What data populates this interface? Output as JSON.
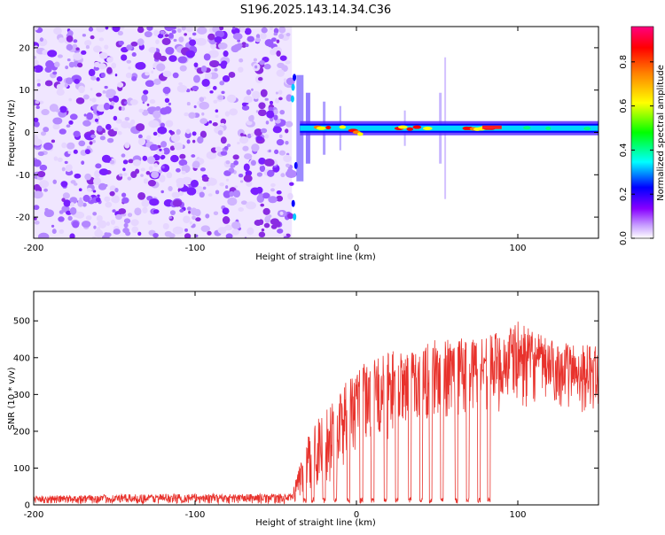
{
  "title": "S196.2025.143.14.34.C36",
  "chart_data": [
    {
      "type": "heatmap",
      "xlabel": "Height of straight line (km)",
      "ylabel": "Frequency (Hz)",
      "xlim": [
        -200,
        150
      ],
      "ylim": [
        -25,
        25
      ],
      "xticks": [
        -200,
        -100,
        0,
        100
      ],
      "yticks": [
        -20,
        -10,
        0,
        10,
        20
      ],
      "colorbar": {
        "label": "Normalized spectral amplitude",
        "range": [
          0.0,
          0.96
        ],
        "ticks": [
          0.0,
          0.2,
          0.4,
          0.6,
          0.8
        ],
        "tick_labels": [
          "0.0",
          "0.2",
          "0.4",
          "0.6",
          "0.8"
        ],
        "colormap": [
          "#ffffff",
          "#8800ff",
          "#0000ff",
          "#00ffff",
          "#00ff00",
          "#ffff00",
          "#ff8000",
          "#ff0000",
          "#ff0080"
        ]
      },
      "features": {
        "noise_region_x": [
          -200,
          -40
        ],
        "tone_start_x": -35,
        "tone_frequency_hz": 1,
        "strong_segments_x": [
          [
            -25,
            5
          ],
          [
            20,
            50
          ],
          [
            60,
            85
          ]
        ]
      }
    },
    {
      "type": "line",
      "xlabel": "Height of straight line (km)",
      "ylabel": "SNR (10 * v/v)",
      "xlim": [
        -200,
        150
      ],
      "ylim": [
        0,
        580
      ],
      "xticks": [
        -200,
        -100,
        0,
        100
      ],
      "yticks": [
        0,
        100,
        200,
        300,
        400,
        500
      ],
      "series": [
        {
          "color": "#e8322c",
          "envelope": {
            "x": [
              -200,
              -120,
              -80,
              -40,
              -35,
              -30,
              -20,
              -10,
              0,
              10,
              20,
              30,
              40,
              50,
              60,
              70,
              80,
              90,
              100,
              110,
              120,
              130,
              140,
              150
            ],
            "low": [
              2,
              2,
              2,
              2,
              10,
              30,
              50,
              80,
              120,
              150,
              180,
              200,
              210,
              220,
              230,
              240,
              250,
              250,
              260,
              270,
              270,
              260,
              250,
              250
            ],
            "high": [
              25,
              30,
              30,
              30,
              120,
              200,
              260,
              320,
              370,
              400,
              420,
              430,
              440,
              450,
              450,
              460,
              470,
              470,
              500,
              470,
              450,
              440,
              440,
              430
            ]
          },
          "dropouts_x": [
            -32,
            -27,
            -20,
            -13,
            -5,
            3,
            10,
            18,
            25,
            33,
            40,
            46,
            53,
            62,
            69,
            76,
            82
          ]
        }
      ]
    }
  ]
}
